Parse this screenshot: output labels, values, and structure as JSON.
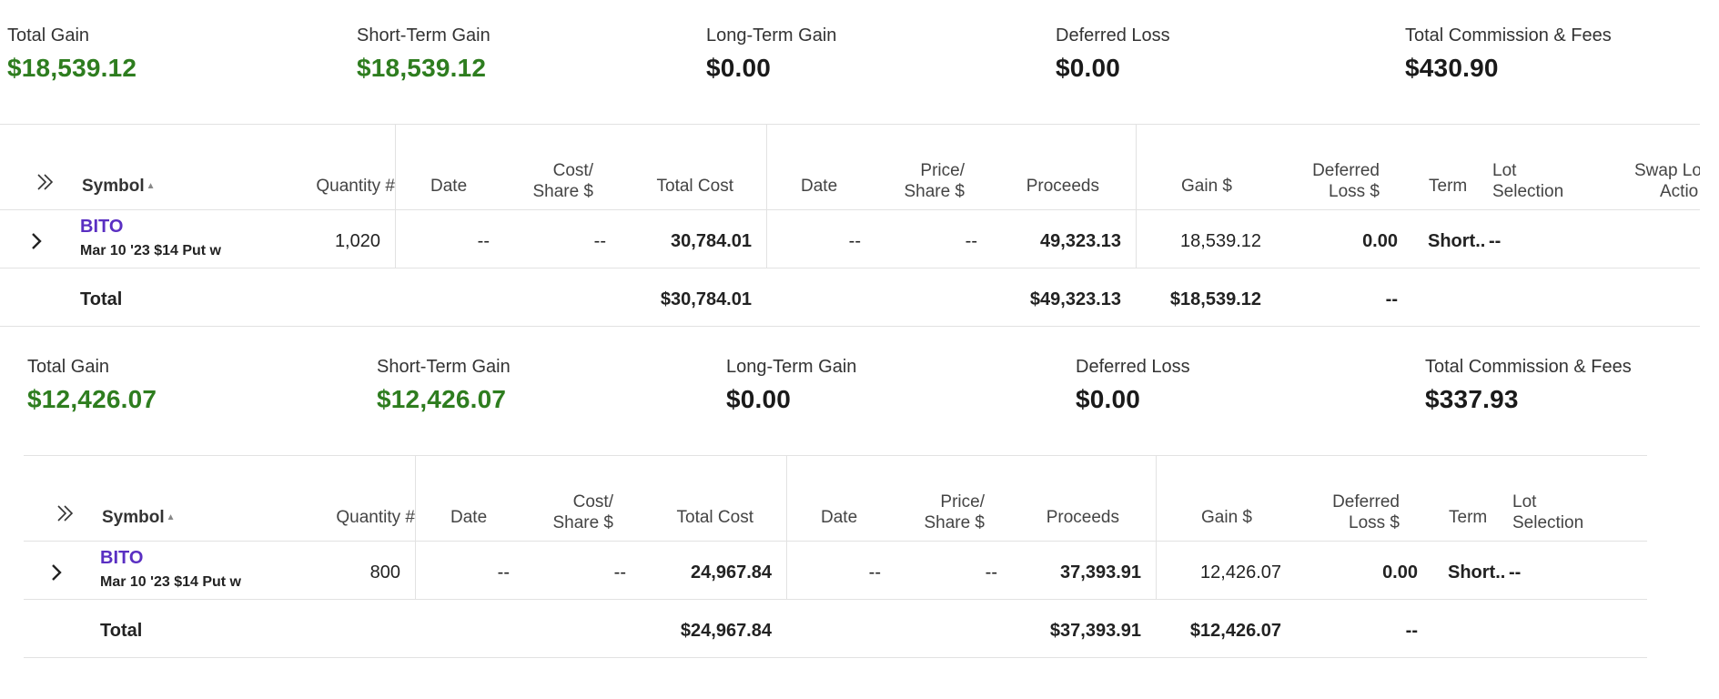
{
  "panels": [
    {
      "summary": [
        {
          "label": "Total Gain",
          "value": "$18,539.12",
          "tone": "green"
        },
        {
          "label": "Short-Term Gain",
          "value": "$18,539.12",
          "tone": "green"
        },
        {
          "label": "Long-Term Gain",
          "value": "$0.00",
          "tone": "dark"
        },
        {
          "label": "Deferred Loss",
          "value": "$0.00",
          "tone": "dark"
        },
        {
          "label": "Total Commission & Fees",
          "value": "$430.90",
          "tone": "dark"
        }
      ],
      "headers": {
        "symbol": "Symbol",
        "quantity": "Quantity #",
        "acq_date": "Date",
        "cost_share_1": "Cost/",
        "cost_share_2": "Share $",
        "total_cost": "Total Cost",
        "sold_date": "Date",
        "price_share_1": "Price/",
        "price_share_2": "Share $",
        "proceeds": "Proceeds",
        "gain": "Gain $",
        "deferred_1": "Deferred",
        "deferred_2": "Loss $",
        "term": "Term",
        "lot_1": "Lot",
        "lot_2": "Selection",
        "swap_1": "Swap Lo",
        "swap_2": "Actio"
      },
      "row": {
        "symbol": "BITO",
        "description": "Mar 10 '23 $14 Put w",
        "quantity": "1,020",
        "acq_date": "--",
        "cost_share": "--",
        "total_cost": "30,784.01",
        "sold_date": "--",
        "price_share": "--",
        "proceeds": "49,323.13",
        "gain": "18,539.12",
        "deferred": "0.00",
        "term": "Short..",
        "lot": "--"
      },
      "total": {
        "label": "Total",
        "total_cost": "$30,784.01",
        "proceeds": "$49,323.13",
        "gain": "$18,539.12",
        "deferred": "--"
      }
    },
    {
      "summary": [
        {
          "label": "Total Gain",
          "value": "$12,426.07",
          "tone": "green"
        },
        {
          "label": "Short-Term Gain",
          "value": "$12,426.07",
          "tone": "green"
        },
        {
          "label": "Long-Term Gain",
          "value": "$0.00",
          "tone": "dark"
        },
        {
          "label": "Deferred Loss",
          "value": "$0.00",
          "tone": "dark"
        },
        {
          "label": "Total Commission & Fees",
          "value": "$337.93",
          "tone": "dark"
        }
      ],
      "headers": {
        "symbol": "Symbol",
        "quantity": "Quantity #",
        "acq_date": "Date",
        "cost_share_1": "Cost/",
        "cost_share_2": "Share $",
        "total_cost": "Total Cost",
        "sold_date": "Date",
        "price_share_1": "Price/",
        "price_share_2": "Share $",
        "proceeds": "Proceeds",
        "gain": "Gain $",
        "deferred_1": "Deferred",
        "deferred_2": "Loss $",
        "term": "Term",
        "lot_1": "Lot",
        "lot_2": "Selection"
      },
      "row": {
        "symbol": "BITO",
        "description": "Mar 10 '23 $14 Put w",
        "quantity": "800",
        "acq_date": "--",
        "cost_share": "--",
        "total_cost": "24,967.84",
        "sold_date": "--",
        "price_share": "--",
        "proceeds": "37,393.91",
        "gain": "12,426.07",
        "deferred": "0.00",
        "term": "Short..",
        "lot": "--"
      },
      "total": {
        "label": "Total",
        "total_cost": "$24,967.84",
        "proceeds": "$37,393.91",
        "gain": "$12,426.07",
        "deferred": "--"
      }
    }
  ],
  "icons": {
    "expand_all": "double-chevron-right-icon",
    "expand_row": "chevron-right-icon",
    "sort": "sort-ascending-icon"
  },
  "colors": {
    "gain_green": "#2e7d1f",
    "symbol_purple": "#5a2fc2",
    "divider": "#e2e2e2"
  }
}
